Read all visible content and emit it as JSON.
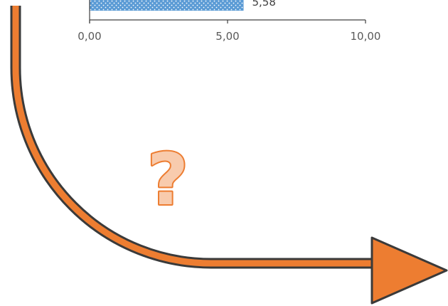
{
  "chart_data": {
    "type": "bar",
    "orientation": "horizontal",
    "categories": [
      ""
    ],
    "values": [
      5.58
    ],
    "data_labels": [
      "5,58"
    ],
    "xlim": [
      0,
      10
    ],
    "x_ticks": [
      "0,00",
      "5,00",
      "10,00"
    ],
    "grid": false,
    "legend": "none",
    "bar_fill": "#5b9bd5",
    "bar_pattern": "white-dots",
    "axis_color": "#404040",
    "tick_label_color": "#595959"
  },
  "overlay": {
    "question_mark": "?",
    "question_mark_fill": "#f8cbad",
    "question_mark_stroke": "#ed7d31",
    "arrow_fill": "#ed7d31",
    "arrow_stroke": "#3a3a3a",
    "arrow_icon": "curved-down-right-arrow-icon"
  }
}
